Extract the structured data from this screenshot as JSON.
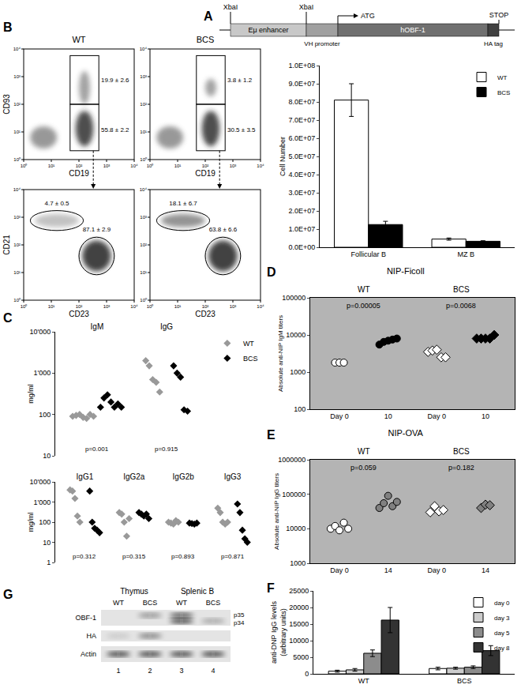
{
  "construct": {
    "panel": "A",
    "sites": [
      "XbaI",
      "XbaI"
    ],
    "start": "ATG",
    "stop": "STOP",
    "segments": [
      "Eμ enhancer",
      "VH promoter",
      "hOBF-1",
      "HA tag"
    ]
  },
  "flow": {
    "panel": "B",
    "columns": [
      "WT",
      "BCS"
    ],
    "axis_ticks": [
      "10⁰",
      "10¹",
      "10²",
      "10³",
      "10⁴"
    ],
    "rows": [
      {
        "x_label": "CD19",
        "y_label": "CD93",
        "gates": [
          [
            "19.9 ± 2.6",
            "55.8 ± 2.2"
          ],
          [
            "3.8 ± 1.2",
            "30.5 ± 3.5"
          ]
        ]
      },
      {
        "x_label": "CD23",
        "y_label": "CD21",
        "gates": [
          [
            "4.7 ± 0.5",
            "87.1 ± 2.9"
          ],
          [
            "18.1 ± 6.7",
            "63.8 ± 6.6"
          ]
        ]
      }
    ]
  },
  "chart_data": [
    {
      "type": "bar",
      "ylabel": "Cell Number",
      "categories": [
        "Follicular B",
        "MZ B"
      ],
      "series": [
        {
          "name": "WT",
          "color": "#ffffff",
          "values": [
            81000000,
            4500000
          ],
          "errors": [
            9000000,
            600000
          ]
        },
        {
          "name": "BCS",
          "color": "#000000",
          "values": [
            12500000,
            3300000
          ],
          "errors": [
            1800000,
            300000
          ]
        }
      ],
      "ylim": [
        0,
        100000000
      ],
      "yticks": [
        {
          "value": 0,
          "label": "0.0E+00"
        },
        {
          "value": 10000000,
          "label": "1.0E+07"
        },
        {
          "value": 20000000,
          "label": "2.0E+07"
        },
        {
          "value": 30000000,
          "label": "3.0E+07"
        },
        {
          "value": 40000000,
          "label": "4.0E+07"
        },
        {
          "value": 50000000,
          "label": "5.0E+07"
        },
        {
          "value": 60000000,
          "label": "6.0E+07"
        },
        {
          "value": 70000000,
          "label": "7.0E+07"
        },
        {
          "value": 80000000,
          "label": "8.0E+07"
        },
        {
          "value": 90000000,
          "label": "9.0E+07"
        },
        {
          "value": 100000000,
          "label": "1.0E+08"
        }
      ],
      "legend": "top right",
      "grid": false
    },
    {
      "type": "strip",
      "panel": "C",
      "ylabel": "mg/ml",
      "log": "y",
      "ylim": [
        10,
        10000
      ],
      "yticks": [
        10,
        100,
        {
          "value": 1000,
          "label": "1'000"
        },
        {
          "value": 10000,
          "label": "10'000"
        }
      ],
      "categories": [
        "IgM",
        "IgG"
      ],
      "p_values": [
        "p=0.001",
        "p=0.915"
      ],
      "series": [
        {
          "name": "WT",
          "color": "#999999",
          "marker": "diamond",
          "values": [
            [
              90,
              95,
              100,
              85,
              80,
              100,
              90
            ],
            [
              2000,
              1500,
              700,
              600,
              350
            ]
          ]
        },
        {
          "name": "BCS",
          "color": "#000000",
          "marker": "diamond",
          "values": [
            [
              150,
              250,
              300,
              200,
              150,
              180,
              150
            ],
            [
              1500,
              1000,
              800,
              130,
              120
            ]
          ]
        }
      ],
      "legend": "right"
    },
    {
      "type": "strip",
      "ylabel": "mg/ml",
      "log": "y",
      "ylim": [
        1,
        10000
      ],
      "yticks": [
        1,
        10,
        100,
        {
          "value": 1000,
          "label": "1'000"
        },
        {
          "value": 10000,
          "label": "10'000"
        }
      ],
      "categories": [
        "IgG1",
        "IgG2a",
        "IgG2b",
        "IgG3"
      ],
      "p_values": [
        "p=0.312",
        "p=0.315",
        "p=0.893",
        "p=0.871"
      ],
      "series": [
        {
          "color": "#999999",
          "marker": "diamond",
          "values": [
            [
              4000,
              3500,
              1500,
              200,
              100
            ],
            [
              300,
              250,
              100,
              20,
              150
            ],
            [
              100,
              90,
              80,
              120,
              100
            ],
            [
              500,
              300,
              100,
              80,
              100
            ]
          ]
        },
        {
          "color": "#000000",
          "marker": "diamond",
          "values": [
            [
              3500,
              100,
              50,
              40,
              30
            ],
            [
              300,
              250,
              200,
              250,
              150
            ],
            [
              90,
              85,
              80,
              90
            ],
            [
              800,
              300,
              40,
              15,
              10
            ]
          ]
        }
      ]
    },
    {
      "type": "grouped_strip",
      "panel": "D",
      "title": "NIP-Ficoll",
      "ylabel": "Absolute anti-NIP IgM titers",
      "log": "y",
      "ylim": [
        100,
        100000
      ],
      "yticks": [
        100,
        1000,
        10000,
        100000
      ],
      "categories": [
        "Day 0",
        "10"
      ],
      "groups": [
        {
          "name": "WT",
          "p_value": "p=0.00005",
          "marker": "circle",
          "colors": [
            "#ffffff",
            "#000000"
          ],
          "values": [
            [
              1800,
              1800,
              1800
            ],
            [
              5500,
              6500,
              7000,
              7500,
              8000
            ]
          ]
        },
        {
          "name": "BCS",
          "p_value": "p=0.0068",
          "marker": "diamond",
          "colors": [
            "#ffffff",
            "#000000"
          ],
          "values": [
            [
              3500,
              3800,
              4000,
              2500,
              2500
            ],
            [
              8000,
              8000,
              8000,
              8000,
              10000
            ]
          ]
        }
      ]
    },
    {
      "type": "grouped_strip",
      "panel": "E",
      "title": "NIP-OVA",
      "ylabel": "Absolute anti-NIP IgG titers",
      "log": "y",
      "ylim": [
        1000,
        1000000
      ],
      "yticks": [
        1000,
        10000,
        100000,
        1000000
      ],
      "categories": [
        "Day 0",
        "14"
      ],
      "groups": [
        {
          "name": "WT",
          "p_value": "p=0.059",
          "marker": "circle",
          "colors": [
            "#ffffff",
            "#808080"
          ],
          "values": [
            [
              10000,
              12000,
              9000,
              15000,
              10000
            ],
            [
              40000,
              55000,
              90000,
              45000,
              60000
            ]
          ]
        },
        {
          "name": "BCS",
          "p_value": "p=0.182",
          "marker": "diamond",
          "colors": [
            "#ffffff",
            "#808080"
          ],
          "values": [
            [
              30000,
              45000,
              32000,
              35000
            ],
            [
              40000,
              50000,
              48000
            ]
          ]
        }
      ]
    },
    {
      "type": "bar",
      "panel": "F",
      "ylabel": [
        "anti-DNP IgG levels",
        "(arbitrary units)"
      ],
      "categories": [
        "WT",
        "BCS"
      ],
      "series": [
        {
          "name": "day 0",
          "color": "#ffffff",
          "values": [
            800,
            1600
          ],
          "errors": [
            300,
            400
          ]
        },
        {
          "name": "day 3",
          "color": "#cccccc",
          "values": [
            1200,
            1700
          ],
          "errors": [
            400,
            300
          ]
        },
        {
          "name": "day 5",
          "color": "#8c8c8c",
          "values": [
            6200,
            2000
          ],
          "errors": [
            1000,
            400
          ]
        },
        {
          "name": "day 8",
          "color": "#333333",
          "values": [
            16200,
            7000
          ],
          "errors": [
            3800,
            1500
          ]
        }
      ],
      "ylim": [
        0,
        25000
      ],
      "yticks": [
        0,
        5000,
        10000,
        15000,
        20000,
        25000
      ],
      "legend": "top right",
      "grid": false
    }
  ],
  "western_blot": {
    "panel": "G",
    "tissues": [
      "Thymus",
      "Splenic B"
    ],
    "lanes": [
      "WT",
      "BCS",
      "WT",
      "BCS"
    ],
    "lane_numbers": [
      "1",
      "2",
      "3",
      "4"
    ],
    "rows": [
      "OBF-1",
      "HA",
      "Actin"
    ],
    "bands": [
      "p35",
      "p34"
    ]
  }
}
